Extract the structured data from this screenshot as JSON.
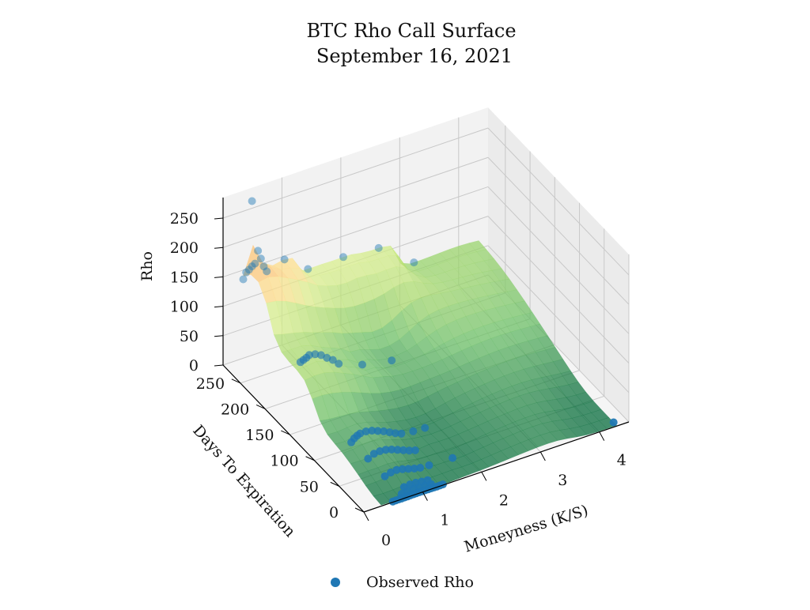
{
  "chart_data": {
    "type": "scatter",
    "subtype": "3d-surface-with-scatter",
    "title": "BTC Rho Call Surface",
    "subtitle": "September 16, 2021",
    "xlabel": "Moneyness (K/S)",
    "ylabel": "Days To Expiration",
    "zlabel": "Rho",
    "xlim": [
      0,
      4.5
    ],
    "ylim": [
      0,
      285
    ],
    "zlim": [
      0,
      285
    ],
    "x_ticks": [
      "0",
      "1",
      "2",
      "3",
      "4"
    ],
    "y_ticks": [
      "0",
      "50",
      "100",
      "150",
      "200",
      "250"
    ],
    "z_ticks": [
      "0",
      "50",
      "100",
      "150",
      "200",
      "250"
    ],
    "grid": true,
    "legend_position": "bottom-center",
    "surface_colormap": "RdYlGn",
    "series": [
      {
        "name": "Observed Rho",
        "color": "#1f77b4",
        "points": [
          [
            0.45,
            280,
            268
          ],
          [
            0.3,
            280,
            140
          ],
          [
            0.35,
            280,
            150
          ],
          [
            0.4,
            280,
            153
          ],
          [
            0.45,
            280,
            157
          ],
          [
            0.5,
            280,
            160
          ],
          [
            0.55,
            280,
            180
          ],
          [
            0.6,
            280,
            165
          ],
          [
            0.65,
            280,
            150
          ],
          [
            0.7,
            280,
            140
          ],
          [
            1.0,
            280,
            150
          ],
          [
            1.4,
            280,
            120
          ],
          [
            2.0,
            280,
            120
          ],
          [
            2.6,
            280,
            115
          ],
          [
            3.2,
            280,
            70
          ],
          [
            0.45,
            182,
            80
          ],
          [
            0.5,
            182,
            82
          ],
          [
            0.55,
            182,
            84
          ],
          [
            0.6,
            182,
            87
          ],
          [
            0.7,
            182,
            85
          ],
          [
            0.8,
            182,
            80
          ],
          [
            0.9,
            182,
            72
          ],
          [
            1.0,
            182,
            65
          ],
          [
            1.1,
            182,
            55
          ],
          [
            1.5,
            182,
            40
          ],
          [
            2.0,
            182,
            30
          ],
          [
            0.55,
            91,
            20
          ],
          [
            0.6,
            91,
            25
          ],
          [
            0.65,
            91,
            28
          ],
          [
            0.7,
            91,
            30
          ],
          [
            0.8,
            91,
            30
          ],
          [
            0.9,
            91,
            28
          ],
          [
            1.0,
            91,
            24
          ],
          [
            1.1,
            91,
            20
          ],
          [
            1.2,
            91,
            15
          ],
          [
            1.3,
            91,
            10
          ],
          [
            1.4,
            91,
            6
          ],
          [
            1.6,
            91,
            3
          ],
          [
            1.8,
            91,
            2
          ],
          [
            0.6,
            63,
            15
          ],
          [
            0.7,
            63,
            20
          ],
          [
            0.8,
            63,
            21
          ],
          [
            0.9,
            63,
            20
          ],
          [
            1.0,
            63,
            17
          ],
          [
            1.1,
            63,
            13
          ],
          [
            1.2,
            63,
            9
          ],
          [
            1.3,
            63,
            5
          ],
          [
            1.4,
            63,
            2
          ],
          [
            0.65,
            35,
            8
          ],
          [
            0.75,
            35,
            11
          ],
          [
            0.85,
            35,
            12
          ],
          [
            0.95,
            35,
            10
          ],
          [
            1.05,
            35,
            7
          ],
          [
            1.15,
            35,
            4
          ],
          [
            1.25,
            35,
            2
          ],
          [
            1.4,
            35,
            1
          ],
          [
            1.8,
            35,
            0
          ],
          [
            0.8,
            14,
            3
          ],
          [
            0.9,
            14,
            4
          ],
          [
            1.0,
            14,
            3.5
          ],
          [
            1.1,
            14,
            2
          ],
          [
            1.2,
            14,
            1
          ],
          [
            0.7,
            7,
            1
          ],
          [
            0.8,
            7,
            1.5
          ],
          [
            0.9,
            7,
            2
          ],
          [
            1.0,
            7,
            1.5
          ],
          [
            1.1,
            7,
            1
          ],
          [
            1.2,
            7,
            0.5
          ],
          [
            0.5,
            1,
            0
          ],
          [
            0.55,
            1,
            0
          ],
          [
            0.6,
            1,
            0
          ],
          [
            0.65,
            1,
            0
          ],
          [
            0.7,
            1,
            0
          ],
          [
            0.75,
            1,
            0.1
          ],
          [
            0.8,
            1,
            0.2
          ],
          [
            0.85,
            1,
            0.3
          ],
          [
            0.9,
            1,
            0.4
          ],
          [
            0.95,
            1,
            0.4
          ],
          [
            1.0,
            1,
            0.4
          ],
          [
            1.05,
            1,
            0.3
          ],
          [
            1.1,
            1,
            0.2
          ],
          [
            1.15,
            1,
            0.1
          ],
          [
            1.2,
            1,
            0
          ],
          [
            1.25,
            1,
            0
          ],
          [
            1.3,
            1,
            0
          ],
          [
            1.35,
            1,
            0
          ],
          [
            4.3,
            7,
            0
          ]
        ]
      }
    ]
  }
}
